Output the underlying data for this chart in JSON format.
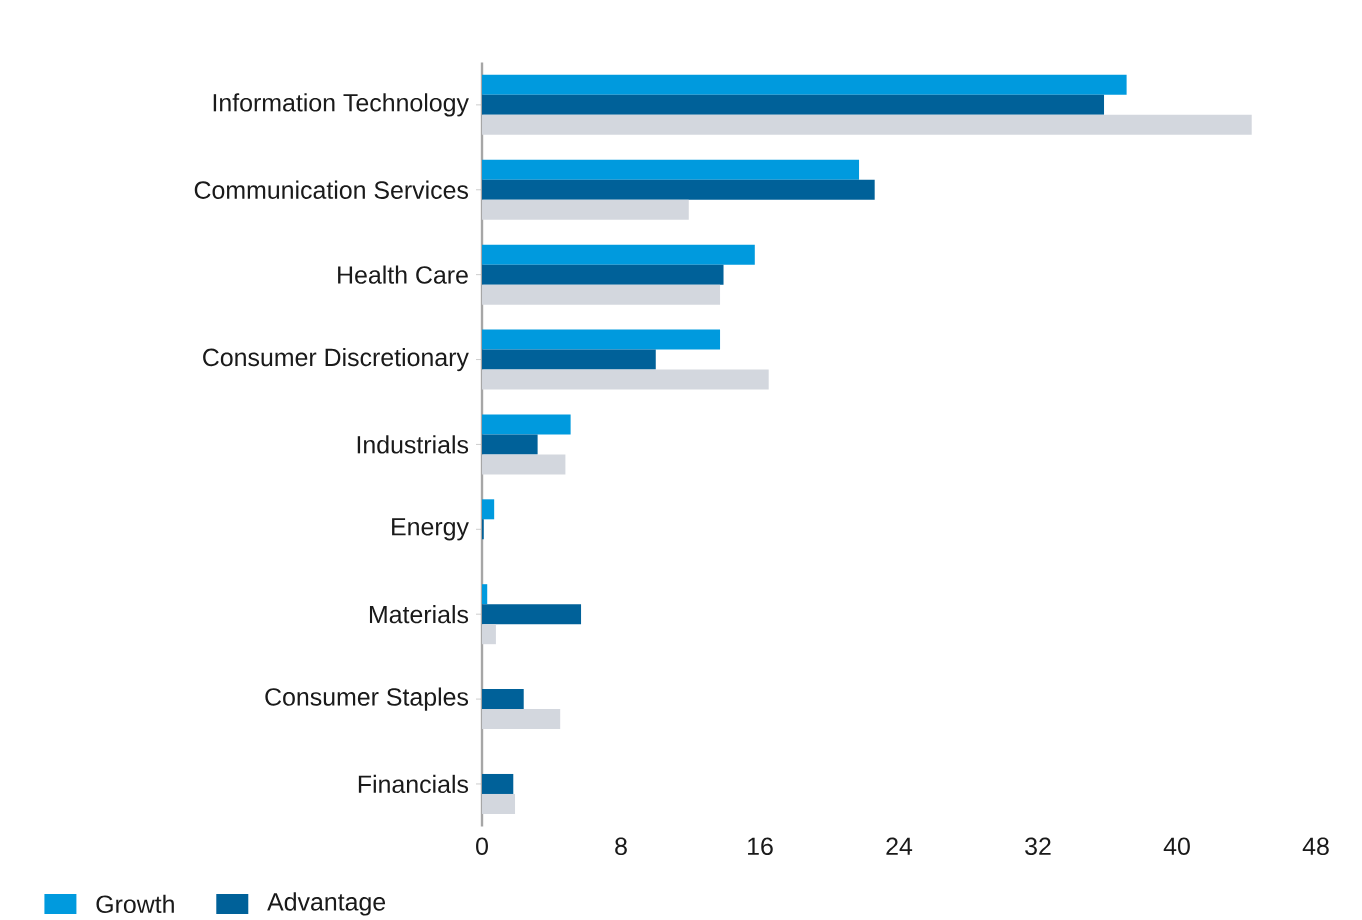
{
  "chart_data": {
    "type": "bar",
    "orientation": "horizontal",
    "categories": [
      "Information Technology",
      "Communication Services",
      "Health Care",
      "Consumer Discretionary",
      "Industrials",
      "Energy",
      "Materials",
      "Consumer Staples",
      "Financials"
    ],
    "series": [
      {
        "name": "Growth",
        "color": "#009ade",
        "values": [
          37.1,
          21.7,
          15.7,
          13.7,
          5.1,
          0.7,
          0.3,
          0,
          0
        ]
      },
      {
        "name": "Advantage",
        "color": "#006199",
        "values": [
          35.8,
          22.6,
          13.9,
          10.0,
          3.2,
          0.1,
          5.7,
          2.4,
          1.8
        ]
      },
      {
        "color": "#d3d7de",
        "values": [
          44.3,
          11.9,
          13.7,
          16.5,
          4.8,
          0,
          0.8,
          4.5,
          1.9
        ]
      }
    ],
    "xlim": [
      0,
      48
    ],
    "xticks": [
      0,
      8,
      16,
      24,
      32,
      40,
      48
    ],
    "grid": false,
    "legend": "bottom"
  }
}
